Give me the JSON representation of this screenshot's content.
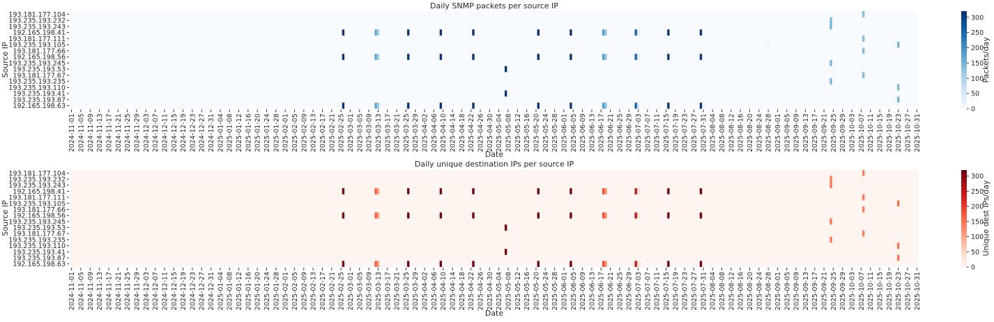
{
  "chart_data": [
    {
      "type": "heatmap",
      "title": "Daily SNMP packets per source IP",
      "xlabel": "Date",
      "ylabel": "Source IP",
      "colorbar_label": "Packets/day",
      "colormap": "Blues",
      "colormap_stops": [
        "#f7fbff",
        "#deebf7",
        "#c6dbef",
        "#9ecae1",
        "#6baed6",
        "#4292c6",
        "#2171b5",
        "#08519c",
        "#08306b"
      ],
      "vmin": 0,
      "vmax": 320,
      "colorbar_ticks": [
        0,
        50,
        100,
        150,
        200,
        250,
        300
      ],
      "date_range": [
        "2024-11-01",
        "2025-10-31"
      ],
      "rows": [
        "193.181.177.104",
        "193.235.193.232",
        "193.235.193.243",
        "192.165.198.41",
        "193.181.177.111",
        "193.235.193.105",
        "193.181.177.66",
        "192.165.198.56",
        "193.235.193.245",
        "193.235.193.53",
        "193.181.177.67",
        "193.235.193.235",
        "193.235.193.110",
        "193.235.193.41",
        "193.235.193.87",
        "192.165.198.63"
      ],
      "x_tick_labels": [
        "2024-11-01",
        "2024-11-05",
        "2024-11-09",
        "2024-11-13",
        "2024-11-17",
        "2024-11-21",
        "2024-11-25",
        "2024-11-29",
        "2024-12-03",
        "2024-12-07",
        "2024-12-11",
        "2024-12-15",
        "2024-12-19",
        "2024-12-23",
        "2024-12-27",
        "2024-12-31",
        "2025-01-04",
        "2025-01-08",
        "2025-01-12",
        "2025-01-16",
        "2025-01-20",
        "2025-01-24",
        "2025-01-28",
        "2025-02-01",
        "2025-02-05",
        "2025-02-09",
        "2025-02-13",
        "2025-02-17",
        "2025-02-21",
        "2025-02-25",
        "2025-03-01",
        "2025-03-05",
        "2025-03-09",
        "2025-03-13",
        "2025-03-17",
        "2025-03-21",
        "2025-03-25",
        "2025-03-29",
        "2025-04-02",
        "2025-04-06",
        "2025-04-10",
        "2025-04-14",
        "2025-04-18",
        "2025-04-22",
        "2025-04-26",
        "2025-04-30",
        "2025-05-04",
        "2025-05-08",
        "2025-05-12",
        "2025-05-16",
        "2025-05-20",
        "2025-05-24",
        "2025-05-28",
        "2025-06-01",
        "2025-06-05",
        "2025-06-09",
        "2025-06-13",
        "2025-06-17",
        "2025-06-21",
        "2025-06-25",
        "2025-06-29",
        "2025-07-03",
        "2025-07-07",
        "2025-07-11",
        "2025-07-15",
        "2025-07-19",
        "2025-07-23",
        "2025-07-27",
        "2025-07-31",
        "2025-08-04",
        "2025-08-08",
        "2025-08-12",
        "2025-08-16",
        "2025-08-20",
        "2025-08-24",
        "2025-08-28",
        "2025-09-01",
        "2025-09-05",
        "2025-09-09",
        "2025-09-13",
        "2025-09-17",
        "2025-09-21",
        "2025-09-25",
        "2025-09-29",
        "2025-10-03",
        "2025-10-07",
        "2025-10-11",
        "2025-10-15",
        "2025-10-19",
        "2025-10-23",
        "2025-10-27",
        "2025-10-31"
      ],
      "groups": [
        {
          "rows": [
            "192.165.198.41",
            "192.165.198.56",
            "192.165.198.63"
          ],
          "values": {
            "2025-02-26": 315,
            "2025-03-12": 170,
            "2025-03-13": 120,
            "2025-03-26": 315,
            "2025-04-09": 315,
            "2025-04-23": 315,
            "2025-05-21": 315,
            "2025-06-04": 315,
            "2025-06-18": 180,
            "2025-06-19": 130,
            "2025-07-02": 260,
            "2025-07-03": 50,
            "2025-07-16": 315,
            "2025-07-30": 315
          }
        },
        {
          "rows": [
            "193.235.193.53",
            "193.235.193.41"
          ],
          "values": {
            "2025-05-07": 315
          }
        },
        {
          "rows": [
            "193.235.193.232",
            "193.235.193.243",
            "193.235.193.245",
            "193.235.193.235"
          ],
          "values": {
            "2025-09-24": 150
          }
        },
        {
          "rows": [
            "193.181.177.104",
            "193.181.177.111",
            "193.181.177.66",
            "193.181.177.67"
          ],
          "values": {
            "2025-10-08": 140
          }
        },
        {
          "rows": [
            "193.235.193.105",
            "193.235.193.110",
            "193.235.193.87"
          ],
          "values": {
            "2025-08-28": 5,
            "2025-10-23": 150
          }
        }
      ]
    },
    {
      "type": "heatmap",
      "title": "Daily unique destination IPs per source IP",
      "xlabel": "Date",
      "ylabel": "Source IP",
      "colorbar_label": "Unique dest IPs/day",
      "colormap": "Reds",
      "colormap_stops": [
        "#fff5f0",
        "#fee0d2",
        "#fcbba1",
        "#fc9272",
        "#fb6a4a",
        "#ef3b2c",
        "#cb181d",
        "#a50f15",
        "#67000d"
      ],
      "vmin": 0,
      "vmax": 320,
      "colorbar_ticks": [
        0,
        50,
        100,
        150,
        200,
        250,
        300
      ],
      "date_range": [
        "2024-11-01",
        "2025-10-31"
      ],
      "rows": [
        "193.181.177.104",
        "193.235.193.232",
        "193.235.193.243",
        "192.165.198.41",
        "193.181.177.111",
        "193.235.193.105",
        "193.181.177.66",
        "192.165.198.56",
        "193.235.193.245",
        "193.235.193.53",
        "193.181.177.67",
        "193.235.193.235",
        "193.235.193.110",
        "193.235.193.41",
        "193.235.193.87",
        "192.165.198.63"
      ],
      "x_tick_labels": [
        "2024-11-01",
        "2024-11-05",
        "2024-11-09",
        "2024-11-13",
        "2024-11-17",
        "2024-11-21",
        "2024-11-25",
        "2024-11-29",
        "2024-12-03",
        "2024-12-07",
        "2024-12-11",
        "2024-12-15",
        "2024-12-19",
        "2024-12-23",
        "2024-12-27",
        "2024-12-31",
        "2025-01-04",
        "2025-01-08",
        "2025-01-12",
        "2025-01-16",
        "2025-01-20",
        "2025-01-24",
        "2025-01-28",
        "2025-02-01",
        "2025-02-05",
        "2025-02-09",
        "2025-02-13",
        "2025-02-17",
        "2025-02-21",
        "2025-02-25",
        "2025-03-01",
        "2025-03-05",
        "2025-03-09",
        "2025-03-13",
        "2025-03-17",
        "2025-03-21",
        "2025-03-25",
        "2025-03-29",
        "2025-04-02",
        "2025-04-06",
        "2025-04-10",
        "2025-04-14",
        "2025-04-18",
        "2025-04-22",
        "2025-04-26",
        "2025-04-30",
        "2025-05-04",
        "2025-05-08",
        "2025-05-12",
        "2025-05-16",
        "2025-05-20",
        "2025-05-24",
        "2025-05-28",
        "2025-06-01",
        "2025-06-05",
        "2025-06-09",
        "2025-06-13",
        "2025-06-17",
        "2025-06-21",
        "2025-06-25",
        "2025-06-29",
        "2025-07-03",
        "2025-07-07",
        "2025-07-11",
        "2025-07-15",
        "2025-07-19",
        "2025-07-23",
        "2025-07-27",
        "2025-07-31",
        "2025-08-04",
        "2025-08-08",
        "2025-08-12",
        "2025-08-16",
        "2025-08-20",
        "2025-08-24",
        "2025-08-28",
        "2025-09-01",
        "2025-09-05",
        "2025-09-09",
        "2025-09-13",
        "2025-09-17",
        "2025-09-21",
        "2025-09-25",
        "2025-09-29",
        "2025-10-03",
        "2025-10-07",
        "2025-10-11",
        "2025-10-15",
        "2025-10-19",
        "2025-10-23",
        "2025-10-27",
        "2025-10-31"
      ],
      "groups": [
        {
          "rows": [
            "192.165.198.41",
            "192.165.198.56",
            "192.165.198.63"
          ],
          "values": {
            "2025-02-26": 315,
            "2025-03-12": 170,
            "2025-03-13": 120,
            "2025-03-26": 315,
            "2025-04-09": 315,
            "2025-04-23": 315,
            "2025-05-21": 315,
            "2025-06-04": 315,
            "2025-06-18": 180,
            "2025-06-19": 130,
            "2025-07-02": 260,
            "2025-07-03": 50,
            "2025-07-16": 315,
            "2025-07-30": 315
          }
        },
        {
          "rows": [
            "193.235.193.53",
            "193.235.193.41"
          ],
          "values": {
            "2025-05-07": 315
          }
        },
        {
          "rows": [
            "193.235.193.232",
            "193.235.193.243",
            "193.235.193.245",
            "193.235.193.235"
          ],
          "values": {
            "2025-09-24": 150
          }
        },
        {
          "rows": [
            "193.181.177.104",
            "193.181.177.111",
            "193.181.177.66",
            "193.181.177.67"
          ],
          "values": {
            "2025-10-08": 140
          }
        },
        {
          "rows": [
            "193.235.193.105",
            "193.235.193.110",
            "193.235.193.87"
          ],
          "values": {
            "2025-08-28": 5,
            "2025-10-23": 150
          }
        }
      ]
    }
  ]
}
